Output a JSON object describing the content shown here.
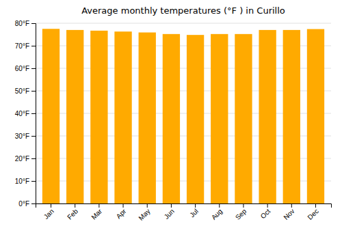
{
  "chart_data": {
    "type": "bar",
    "title": "Average monthly temperatures (°F ) in Curillo",
    "categories": [
      "Jan",
      "Feb",
      "Mar",
      "Apr",
      "May",
      "Jun",
      "Jul",
      "Aug",
      "Sep",
      "Oct",
      "Nov",
      "Dec"
    ],
    "values": [
      77.5,
      77.0,
      76.7,
      76.3,
      75.9,
      75.2,
      74.8,
      75.2,
      75.2,
      77.0,
      77.0,
      77.4
    ],
    "color": "#FFAA00",
    "ylim": [
      0,
      80
    ],
    "yticks": [
      {
        "value": 0,
        "label": "0°F"
      },
      {
        "value": 10,
        "label": "10°F"
      },
      {
        "value": 20,
        "label": "20°F"
      },
      {
        "value": 30,
        "label": "30°F"
      },
      {
        "value": 40,
        "label": "40°F"
      },
      {
        "value": 50,
        "label": "50°F"
      },
      {
        "value": 60,
        "label": "60°F"
      },
      {
        "value": 70,
        "label": "70°F"
      },
      {
        "value": 80,
        "label": "80°F"
      }
    ],
    "grid": true
  }
}
